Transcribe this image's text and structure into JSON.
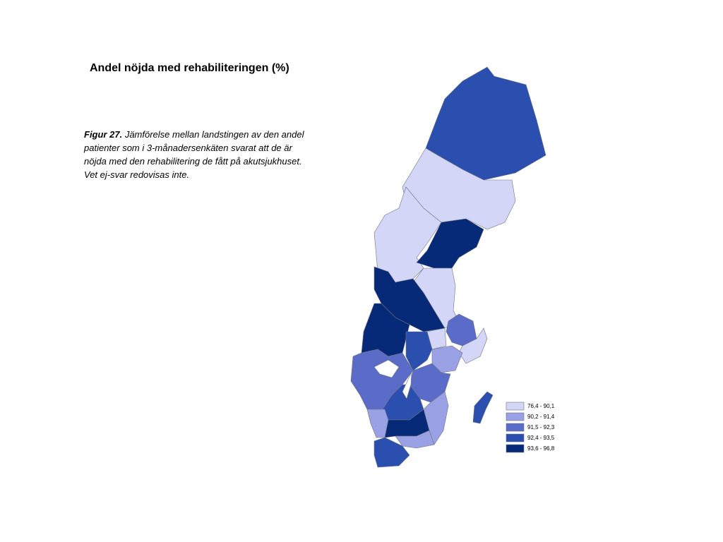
{
  "title": "Andel nöjda med rehabiliteringen (%)",
  "caption": {
    "label": "Figur 27.",
    "text": "Jämförelse mellan landstingen av den andel patienter som i 3-månadersenkäten svarat att de är nöjda med den rehabilitering de fått på akutsjukhuset. Vet ej-svar redovisas inte."
  },
  "legend": {
    "items": [
      {
        "label": "76,4 - 90,1",
        "color": "#d4d6f8"
      },
      {
        "label": "90,2 - 91,4",
        "color": "#9aa0e4"
      },
      {
        "label": "91,5 - 92,3",
        "color": "#5a6cc8"
      },
      {
        "label": "92,4 - 93,5",
        "color": "#2a4fae"
      },
      {
        "label": "93,6 - 96,8",
        "color": "#062a78"
      }
    ]
  }
}
